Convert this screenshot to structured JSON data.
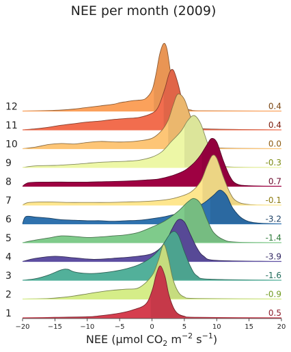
{
  "chart_data": {
    "type": "area",
    "title": "NEE per month (2009)",
    "xlabel_parts": {
      "pre": "NEE (µmol CO",
      "sub": "2",
      "mid": " m",
      "sup1": "−2",
      "mid2": " s",
      "sup2": "−1",
      "post": ")"
    },
    "xlim": [
      -20,
      20
    ],
    "xticks": [
      -20,
      -15,
      -10,
      -5,
      0,
      5,
      10,
      15,
      20
    ],
    "series": [
      {
        "label": "1",
        "value": "0.5",
        "color": "#d53e4f",
        "text_color": "#8c1c2a",
        "points": [
          [
            -20,
            0
          ],
          [
            -15,
            0.01
          ],
          [
            -10,
            0.02
          ],
          [
            -8,
            0.04
          ],
          [
            -5,
            0.09
          ],
          [
            -3,
            0.15
          ],
          [
            -1,
            0.26
          ],
          [
            0,
            0.52
          ],
          [
            0.7,
            0.85
          ],
          [
            1.3,
            1
          ],
          [
            2,
            0.8
          ],
          [
            2.6,
            0.45
          ],
          [
            3.3,
            0.2
          ],
          [
            4,
            0.08
          ],
          [
            5,
            0.03
          ],
          [
            7,
            0.01
          ],
          [
            20,
            0
          ]
        ]
      },
      {
        "label": "2",
        "value": "-0.9",
        "color": "#d5ed88",
        "text_color": "#6f9a1f",
        "points": [
          [
            -20,
            0
          ],
          [
            -16,
            0.01
          ],
          [
            -14,
            0.03
          ],
          [
            -12,
            0.06
          ],
          [
            -10,
            0.1
          ],
          [
            -8,
            0.14
          ],
          [
            -6,
            0.17
          ],
          [
            -4,
            0.19
          ],
          [
            -2,
            0.22
          ],
          [
            0,
            0.45
          ],
          [
            1,
            0.75
          ],
          [
            1.8,
            1.05
          ],
          [
            2.5,
            0.8
          ],
          [
            3.2,
            0.4
          ],
          [
            4,
            0.15
          ],
          [
            5,
            0.04
          ],
          [
            7,
            0.01
          ],
          [
            20,
            0
          ]
        ]
      },
      {
        "label": "3",
        "value": "-1.6",
        "color": "#52b09a",
        "text_color": "#1f6b5a",
        "points": [
          [
            -20,
            0
          ],
          [
            -18,
            0.03
          ],
          [
            -16,
            0.1
          ],
          [
            -14,
            0.2
          ],
          [
            -13,
            0.21
          ],
          [
            -12,
            0.16
          ],
          [
            -10,
            0.13
          ],
          [
            -8,
            0.14
          ],
          [
            -6,
            0.17
          ],
          [
            -4,
            0.22
          ],
          [
            -2,
            0.3
          ],
          [
            0,
            0.45
          ],
          [
            1.5,
            0.65
          ],
          [
            3,
            0.92
          ],
          [
            4,
            0.88
          ],
          [
            5,
            0.55
          ],
          [
            6,
            0.25
          ],
          [
            7,
            0.08
          ],
          [
            9,
            0.02
          ],
          [
            20,
            0
          ]
        ]
      },
      {
        "label": "4",
        "value": "-3.9",
        "color": "#5e4fa2",
        "text_color": "#2f2460",
        "points": [
          [
            -20,
            0
          ],
          [
            -18,
            0.06
          ],
          [
            -15,
            0.1
          ],
          [
            -12,
            0.07
          ],
          [
            -9,
            0.04
          ],
          [
            -6,
            0.06
          ],
          [
            -3,
            0.09
          ],
          [
            0,
            0.15
          ],
          [
            2,
            0.35
          ],
          [
            3,
            0.6
          ],
          [
            4,
            0.8
          ],
          [
            5,
            0.76
          ],
          [
            6,
            0.5
          ],
          [
            7,
            0.25
          ],
          [
            8,
            0.1
          ],
          [
            10,
            0.02
          ],
          [
            20,
            0
          ]
        ]
      },
      {
        "label": "5",
        "value": "-1.4",
        "color": "#7fcb8b",
        "text_color": "#2e7a3a",
        "points": [
          [
            -20,
            0
          ],
          [
            -18,
            0.05
          ],
          [
            -16,
            0.09
          ],
          [
            -14,
            0.13
          ],
          [
            -12,
            0.12
          ],
          [
            -10,
            0.1
          ],
          [
            -8,
            0.11
          ],
          [
            -6,
            0.13
          ],
          [
            -4,
            0.15
          ],
          [
            -2,
            0.2
          ],
          [
            0,
            0.3
          ],
          [
            2,
            0.42
          ],
          [
            4,
            0.6
          ],
          [
            5.5,
            0.78
          ],
          [
            6.5,
            0.85
          ],
          [
            7.5,
            0.75
          ],
          [
            8.5,
            0.45
          ],
          [
            9.5,
            0.2
          ],
          [
            11,
            0.06
          ],
          [
            13,
            0.01
          ],
          [
            20,
            0
          ]
        ]
      },
      {
        "label": "6",
        "value": "-3.2",
        "color": "#2f72ae",
        "text_color": "#1a3e63",
        "points": [
          [
            -20,
            0
          ],
          [
            -19.5,
            0.14
          ],
          [
            -18,
            0.13
          ],
          [
            -16,
            0.11
          ],
          [
            -14,
            0.08
          ],
          [
            -12,
            0.07
          ],
          [
            -10,
            0.06
          ],
          [
            -8,
            0.06
          ],
          [
            -6,
            0.05
          ],
          [
            -4,
            0.06
          ],
          [
            -2,
            0.07
          ],
          [
            0,
            0.1
          ],
          [
            2,
            0.14
          ],
          [
            4,
            0.2
          ],
          [
            6,
            0.28
          ],
          [
            8,
            0.4
          ],
          [
            9.5,
            0.55
          ],
          [
            10.5,
            0.65
          ],
          [
            11.5,
            0.55
          ],
          [
            12.5,
            0.3
          ],
          [
            14,
            0.1
          ],
          [
            16,
            0.02
          ],
          [
            20,
            0
          ]
        ]
      },
      {
        "label": "7",
        "value": "-0.1",
        "color": "#fee68e",
        "text_color": "#8c7a10",
        "points": [
          [
            -20,
            0
          ],
          [
            -19,
            0.05
          ],
          [
            -16,
            0.06
          ],
          [
            -13,
            0.05
          ],
          [
            -10,
            0.05
          ],
          [
            -7,
            0.05
          ],
          [
            -4,
            0.06
          ],
          [
            -1,
            0.07
          ],
          [
            2,
            0.1
          ],
          [
            4,
            0.15
          ],
          [
            6,
            0.25
          ],
          [
            7.5,
            0.45
          ],
          [
            8.5,
            0.75
          ],
          [
            9.3,
            0.95
          ],
          [
            10,
            0.9
          ],
          [
            11,
            0.55
          ],
          [
            12,
            0.25
          ],
          [
            13,
            0.08
          ],
          [
            15,
            0.01
          ],
          [
            20,
            0
          ]
        ]
      },
      {
        "label": "8",
        "value": "0.7",
        "color": "#9e0142",
        "text_color": "#6a0a2c",
        "points": [
          [
            -20,
            0
          ],
          [
            -19,
            0.07
          ],
          [
            -16,
            0.08
          ],
          [
            -13,
            0.08
          ],
          [
            -10,
            0.08
          ],
          [
            -7,
            0.09
          ],
          [
            -4,
            0.1
          ],
          [
            -1,
            0.12
          ],
          [
            1,
            0.14
          ],
          [
            3,
            0.2
          ],
          [
            5,
            0.3
          ],
          [
            6.5,
            0.45
          ],
          [
            7.5,
            0.6
          ],
          [
            8.5,
            0.8
          ],
          [
            9.2,
            0.92
          ],
          [
            10,
            0.85
          ],
          [
            11,
            0.5
          ],
          [
            12,
            0.2
          ],
          [
            13,
            0.05
          ],
          [
            15,
            0.01
          ],
          [
            20,
            0
          ]
        ]
      },
      {
        "label": "9",
        "value": "-0.3",
        "color": "#edf7a6",
        "text_color": "#7a8a12",
        "points": [
          [
            -20,
            0
          ],
          [
            -18,
            0.03
          ],
          [
            -15,
            0.04
          ],
          [
            -12,
            0.06
          ],
          [
            -10,
            0.08
          ],
          [
            -8,
            0.1
          ],
          [
            -6,
            0.11
          ],
          [
            -4,
            0.12
          ],
          [
            -2,
            0.14
          ],
          [
            0,
            0.2
          ],
          [
            1.5,
            0.3
          ],
          [
            3,
            0.5
          ],
          [
            4.5,
            0.7
          ],
          [
            5.5,
            0.9
          ],
          [
            6.5,
            1
          ],
          [
            7.5,
            0.85
          ],
          [
            8.5,
            0.5
          ],
          [
            9.5,
            0.2
          ],
          [
            10.5,
            0.05
          ],
          [
            12,
            0.01
          ],
          [
            20,
            0
          ]
        ]
      },
      {
        "label": "10",
        "value": "0.0",
        "color": "#fdc576",
        "text_color": "#8c5a10",
        "points": [
          [
            -20,
            0
          ],
          [
            -18,
            0.03
          ],
          [
            -16,
            0.08
          ],
          [
            -14,
            0.1
          ],
          [
            -12,
            0.09
          ],
          [
            -10,
            0.12
          ],
          [
            -8,
            0.14
          ],
          [
            -6,
            0.13
          ],
          [
            -4,
            0.13
          ],
          [
            -2,
            0.15
          ],
          [
            0,
            0.2
          ],
          [
            1.5,
            0.35
          ],
          [
            2.5,
            0.55
          ],
          [
            3.3,
            0.85
          ],
          [
            4,
            1.05
          ],
          [
            5,
            0.95
          ],
          [
            6,
            0.6
          ],
          [
            7,
            0.3
          ],
          [
            8,
            0.12
          ],
          [
            9,
            0.04
          ],
          [
            11,
            0.01
          ],
          [
            20,
            0
          ]
        ]
      },
      {
        "label": "11",
        "value": "0.4",
        "color": "#f26d4e",
        "text_color": "#7a1a0a",
        "points": [
          [
            -20,
            0
          ],
          [
            -18,
            0.02
          ],
          [
            -16,
            0.05
          ],
          [
            -14,
            0.09
          ],
          [
            -12,
            0.12
          ],
          [
            -10,
            0.15
          ],
          [
            -8,
            0.17
          ],
          [
            -6,
            0.2
          ],
          [
            -4,
            0.22
          ],
          [
            -2,
            0.24
          ],
          [
            0,
            0.32
          ],
          [
            1,
            0.45
          ],
          [
            2,
            0.8
          ],
          [
            2.7,
            1.1
          ],
          [
            3.3,
            1.15
          ],
          [
            4,
            0.9
          ],
          [
            4.7,
            0.55
          ],
          [
            5.5,
            0.25
          ],
          [
            6.5,
            0.08
          ],
          [
            8,
            0.02
          ],
          [
            20,
            0
          ]
        ]
      },
      {
        "label": "12",
        "value": "0.4",
        "color": "#fba15b",
        "text_color": "#7a4410",
        "points": [
          [
            -20,
            0
          ],
          [
            -16,
            0.01
          ],
          [
            -14,
            0.02
          ],
          [
            -12,
            0.04
          ],
          [
            -10,
            0.07
          ],
          [
            -8,
            0.1
          ],
          [
            -6,
            0.13
          ],
          [
            -5,
            0.16
          ],
          [
            -4,
            0.18
          ],
          [
            -3,
            0.2
          ],
          [
            -2,
            0.21
          ],
          [
            -1,
            0.24
          ],
          [
            0,
            0.4
          ],
          [
            0.6,
            0.7
          ],
          [
            1.2,
            1.1
          ],
          [
            1.8,
            1.3
          ],
          [
            2.3,
            1.2
          ],
          [
            2.8,
            0.8
          ],
          [
            3.3,
            0.45
          ],
          [
            4,
            0.2
          ],
          [
            5,
            0.07
          ],
          [
            6,
            0.02
          ],
          [
            8,
            0.005
          ],
          [
            20,
            0
          ]
        ]
      }
    ]
  }
}
